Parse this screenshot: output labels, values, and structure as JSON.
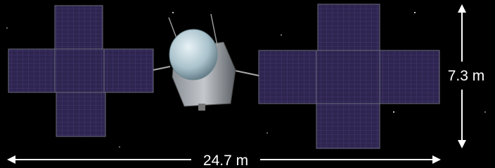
{
  "annotations": {
    "height": "7.3 m",
    "width": "24.7 m"
  }
}
